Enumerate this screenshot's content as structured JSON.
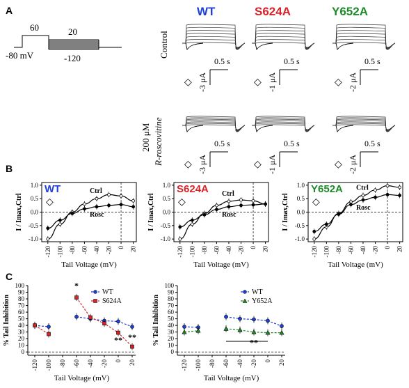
{
  "figure": {
    "panel_labels": [
      "A",
      "B",
      "C"
    ],
    "protocol": {
      "holding": "-80 mV",
      "prepulse": "60",
      "step_top": "20",
      "step_bottom": "-120"
    },
    "columns": [
      {
        "label": "WT",
        "color": "#1f3fd8"
      },
      {
        "label": "S624A",
        "color": "#d8232a"
      },
      {
        "label": "Y652A",
        "color": "#1f8a2a"
      }
    ],
    "rows": {
      "control": "Control",
      "treatment_dose": "200 μM",
      "treatment_drug": "R-roscovitine"
    },
    "scale_bars": {
      "time": "0.5 s",
      "current": [
        [
          "-3 μA",
          "-1 μA",
          "-2 μA"
        ],
        [
          "-3 μA",
          "-1 μA",
          "-2 μA"
        ]
      ]
    },
    "marker": "◇"
  },
  "chart_data": [
    {
      "type": "line",
      "panel": "B",
      "title": "WT",
      "xlabel": "Tail Voltage (mV)",
      "ylabel": "I / Imax,Ctrl",
      "xlim": [
        -130,
        25
      ],
      "ylim": [
        -1.1,
        1.1
      ],
      "xticks": [
        -120,
        -100,
        -80,
        -60,
        -40,
        -20,
        0,
        20
      ],
      "yticks": [
        -1.0,
        -0.5,
        0.0,
        0.5,
        1.0
      ],
      "x": [
        -120,
        -100,
        -80,
        -60,
        -40,
        -20,
        0,
        20
      ],
      "series": [
        {
          "name": "Ctrl",
          "values": [
            -1.0,
            -0.45,
            0.0,
            0.3,
            0.5,
            0.65,
            0.6,
            0.42
          ]
        },
        {
          "name": "Rosc",
          "values": [
            -0.6,
            -0.3,
            -0.05,
            0.12,
            0.2,
            0.25,
            0.28,
            0.2
          ]
        }
      ]
    },
    {
      "type": "line",
      "panel": "B",
      "title": "S624A",
      "xlabel": "Tail Voltage (mV)",
      "ylabel": "I / Imax,Ctrl",
      "xlim": [
        -130,
        25
      ],
      "ylim": [
        -1.1,
        1.1
      ],
      "xticks": [
        -120,
        -100,
        -80,
        -60,
        -40,
        -20,
        0,
        20
      ],
      "yticks": [
        -1.0,
        -0.5,
        0.0,
        0.5,
        1.0
      ],
      "x": [
        -120,
        -100,
        -80,
        -60,
        -40,
        -20,
        0,
        20
      ],
      "series": [
        {
          "name": "Ctrl",
          "values": [
            -1.0,
            -0.45,
            -0.05,
            0.25,
            0.4,
            0.45,
            0.42,
            0.3
          ]
        },
        {
          "name": "Rosc",
          "values": [
            -0.55,
            -0.3,
            -0.1,
            0.1,
            0.2,
            0.25,
            0.27,
            0.3
          ]
        }
      ]
    },
    {
      "type": "line",
      "panel": "B",
      "title": "Y652A",
      "xlabel": "Tail Voltage (mV)",
      "ylabel": "I / Imax,Ctrl",
      "xlim": [
        -130,
        25
      ],
      "ylim": [
        -1.1,
        1.1
      ],
      "xticks": [
        -120,
        -100,
        -80,
        -60,
        -40,
        -20,
        0,
        20
      ],
      "yticks": [
        -1.0,
        -0.5,
        0.0,
        0.5,
        1.0
      ],
      "x": [
        -120,
        -100,
        -80,
        -60,
        -40,
        -20,
        0,
        20
      ],
      "series": [
        {
          "name": "Ctrl",
          "values": [
            -1.0,
            -0.55,
            -0.05,
            0.38,
            0.62,
            0.82,
            0.98,
            0.92
          ]
        },
        {
          "name": "Rosc",
          "values": [
            -0.72,
            -0.45,
            -0.08,
            0.28,
            0.45,
            0.55,
            0.65,
            0.62
          ]
        }
      ]
    },
    {
      "type": "line",
      "panel": "C",
      "xlabel": "Tail Voltage (mV)",
      "ylabel": "% Tail Inhibition",
      "xlim": [
        -130,
        25
      ],
      "ylim": [
        -5,
        100
      ],
      "xticks": [
        -120,
        -100,
        -80,
        -60,
        -40,
        -20,
        0,
        20
      ],
      "yticks": [
        0,
        10,
        20,
        30,
        40,
        50,
        60,
        70,
        80,
        90,
        100
      ],
      "legend": "top-right",
      "series": [
        {
          "name": "WT",
          "color": "#1f3fd8",
          "x": [
            -120,
            -100,
            -60,
            -40,
            -20,
            0,
            20
          ],
          "values": [
            40,
            38,
            53,
            50,
            47,
            46,
            38
          ]
        },
        {
          "name": "S624A",
          "color": "#d8232a",
          "x": [
            -120,
            -100,
            -60,
            -40,
            -20,
            0,
            20
          ],
          "values": [
            40,
            27,
            82,
            52,
            43,
            29,
            8
          ]
        }
      ],
      "annotations": [
        {
          "text": "*",
          "x": -60,
          "y": 96
        },
        {
          "text": "**",
          "x": 0,
          "y": 14
        },
        {
          "text": "**",
          "x": 20,
          "y": 18
        }
      ]
    },
    {
      "type": "line",
      "panel": "C",
      "xlabel": "Tail Voltage (mV)",
      "ylabel": "% Tail Inhibition",
      "xlim": [
        -130,
        25
      ],
      "ylim": [
        -5,
        100
      ],
      "xticks": [
        -120,
        -100,
        -80,
        -60,
        -40,
        -20,
        0,
        20
      ],
      "yticks": [
        0,
        10,
        20,
        30,
        40,
        50,
        60,
        70,
        80,
        90,
        100
      ],
      "legend": "top-right",
      "series": [
        {
          "name": "WT",
          "color": "#1f3fd8",
          "x": [
            -120,
            -100,
            -60,
            -40,
            -20,
            0,
            20
          ],
          "values": [
            38,
            37,
            53,
            50,
            49,
            47,
            39
          ]
        },
        {
          "name": "Y652A",
          "color": "#1f8a2a",
          "x": [
            -120,
            -100,
            -60,
            -40,
            -20,
            0,
            20
          ],
          "values": [
            30,
            32,
            35,
            33,
            30,
            29,
            29
          ]
        }
      ],
      "annotations": [
        {
          "text": "**",
          "x": -20,
          "y": 10
        }
      ]
    }
  ]
}
